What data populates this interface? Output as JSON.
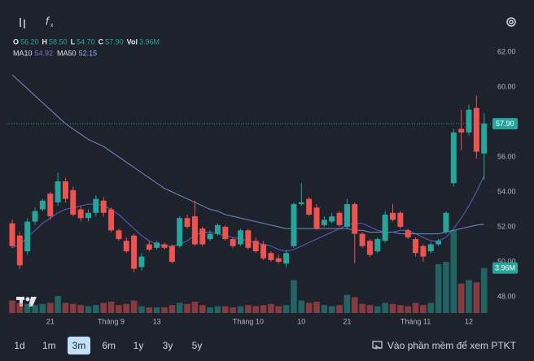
{
  "chart_data": {
    "type": "candlestick",
    "categories": [
      null,
      null,
      null,
      null,
      null,
      "21",
      null,
      null,
      null,
      null,
      null,
      null,
      null,
      "Tháng 9",
      null,
      null,
      null,
      null,
      null,
      "13",
      null,
      null,
      null,
      null,
      null,
      null,
      null,
      null,
      null,
      null,
      null,
      "Tháng 10",
      null,
      null,
      null,
      null,
      null,
      null,
      "10",
      null,
      null,
      null,
      null,
      null,
      "21",
      null,
      null,
      null,
      null,
      null,
      null,
      null,
      null,
      "Tháng 11",
      null,
      null,
      null,
      null,
      null,
      null,
      "12",
      null,
      null
    ],
    "open": [
      52.2,
      51.5,
      50.6,
      52.3,
      53.0,
      53.9,
      53.4,
      54.6,
      54.1,
      53.0,
      52.5,
      52.8,
      53.5,
      53.0,
      51.8,
      51.2,
      51.5,
      49.7,
      51.0,
      50.8,
      51.0,
      50.9,
      50.9,
      52.5,
      52.6,
      51.9,
      51.3,
      51.6,
      52.0,
      51.3,
      51.0,
      51.8,
      51.2,
      51.0,
      50.5,
      50.2,
      49.9,
      50.9,
      53.3,
      53.6,
      53.1,
      52.1,
      52.3,
      52.8,
      52.0,
      53.3,
      51.6,
      51.2,
      50.6,
      51.2,
      52.8,
      52.8,
      51.8,
      51.3,
      50.9,
      50.6,
      51.0,
      51.7,
      54.5,
      57.6,
      57.4,
      58.8,
      56.2
    ],
    "high": [
      52.4,
      51.7,
      52.5,
      53.1,
      53.6,
      54.0,
      55.1,
      54.8,
      54.3,
      53.2,
      53.0,
      53.8,
      53.7,
      53.1,
      51.9,
      51.4,
      51.6,
      50.5,
      51.2,
      51.2,
      51.1,
      51.0,
      52.6,
      52.7,
      53.5,
      52.0,
      51.8,
      52.2,
      52.1,
      51.4,
      51.9,
      51.9,
      51.4,
      51.2,
      50.6,
      50.4,
      50.7,
      53.4,
      54.5,
      53.7,
      53.3,
      52.6,
      52.8,
      52.9,
      53.6,
      53.4,
      51.7,
      51.3,
      51.4,
      52.9,
      53.3,
      52.9,
      51.9,
      51.4,
      51.0,
      51.1,
      51.3,
      52.9,
      57.6,
      58.7,
      59.0,
      59.5,
      58.5
    ],
    "low": [
      50.8,
      49.6,
      50.4,
      52.1,
      52.9,
      52.4,
      53.2,
      53.4,
      52.6,
      52.3,
      52.3,
      52.6,
      52.6,
      51.7,
      51.2,
      50.5,
      49.4,
      49.5,
      50.6,
      50.7,
      50.7,
      49.9,
      50.8,
      51.9,
      50.9,
      50.9,
      51.2,
      51.5,
      51.2,
      50.8,
      50.9,
      50.7,
      50.5,
      50.1,
      50.0,
      49.9,
      49.7,
      50.8,
      53.2,
      52.6,
      51.8,
      52.0,
      52.2,
      52.0,
      51.9,
      49.9,
      50.8,
      50.3,
      50.5,
      51.1,
      52.3,
      51.9,
      51.3,
      50.3,
      50.0,
      50.5,
      50.9,
      51.6,
      54.3,
      56.4,
      57.2,
      55.9,
      54.7
    ],
    "close": [
      50.9,
      49.8,
      52.3,
      52.9,
      53.5,
      52.6,
      54.6,
      53.6,
      52.7,
      52.5,
      52.8,
      53.6,
      52.8,
      51.8,
      51.3,
      50.6,
      49.6,
      50.3,
      50.7,
      51.1,
      50.8,
      50.0,
      52.5,
      52.0,
      51.0,
      51.0,
      51.6,
      52.1,
      51.3,
      50.9,
      51.8,
      50.8,
      50.6,
      50.2,
      50.1,
      50.0,
      50.5,
      53.3,
      53.4,
      52.7,
      51.9,
      52.4,
      52.6,
      52.1,
      53.3,
      51.6,
      50.9,
      50.4,
      51.3,
      52.7,
      52.4,
      52.0,
      51.4,
      50.5,
      50.3,
      51.0,
      51.2,
      52.8,
      57.4,
      57.4,
      58.7,
      56.3,
      57.9
    ],
    "volume": [
      1100000,
      900000,
      800000,
      700000,
      800000,
      900000,
      1500000,
      900000,
      800000,
      700000,
      600000,
      700000,
      900000,
      1000000,
      700000,
      800000,
      1100000,
      600000,
      500000,
      500000,
      500000,
      700000,
      900000,
      800000,
      1000000,
      700000,
      500000,
      600000,
      600000,
      500000,
      600000,
      700000,
      600000,
      700000,
      800000,
      600000,
      700000,
      2900000,
      1100000,
      900000,
      1000000,
      700000,
      600000,
      700000,
      1600000,
      1400000,
      800000,
      700000,
      600000,
      900000,
      800000,
      700000,
      600000,
      900000,
      700000,
      900000,
      4300000,
      4500000,
      7300000,
      2600000,
      2900000,
      2700000,
      3960000
    ],
    "up_color": "#26a69a",
    "down_color": "#ef5350",
    "series": [
      {
        "name": "MA10",
        "color": "#5b5fc7",
        "label_color": "#7f73c4",
        "last_label": "54.92",
        "values": [
          50.8,
          51.0,
          51.4,
          51.8,
          52.2,
          52.5,
          52.8,
          53.0,
          53.1,
          53.2,
          53.3,
          53.3,
          53.2,
          53.0,
          52.7,
          52.3,
          51.9,
          51.5,
          51.2,
          51.0,
          50.9,
          50.9,
          51.0,
          51.2,
          51.5,
          51.7,
          51.7,
          51.6,
          51.5,
          51.4,
          51.3,
          51.2,
          51.1,
          51.0,
          50.9,
          50.7,
          50.6,
          50.7,
          50.9,
          51.1,
          51.3,
          51.5,
          51.7,
          51.9,
          52.1,
          52.2,
          52.2,
          52.0,
          51.8,
          51.7,
          51.7,
          51.8,
          51.8,
          51.6,
          51.4,
          51.2,
          51.2,
          51.4,
          51.9,
          52.5,
          53.2,
          54.0,
          54.92
        ]
      },
      {
        "name": "MA50",
        "color": "#6f8fc0",
        "label_color": "#8fb2e8",
        "last_label": "52.15",
        "values": [
          60.7,
          60.3,
          59.9,
          59.5,
          59.1,
          58.7,
          58.3,
          57.9,
          57.6,
          57.3,
          57.0,
          56.8,
          56.6,
          56.3,
          56.0,
          55.7,
          55.4,
          55.1,
          54.8,
          54.5,
          54.2,
          54.0,
          53.8,
          53.6,
          53.4,
          53.2,
          53.0,
          52.9,
          52.7,
          52.6,
          52.5,
          52.4,
          52.3,
          52.2,
          52.1,
          52.0,
          51.9,
          51.9,
          51.9,
          51.9,
          51.9,
          51.9,
          51.9,
          51.9,
          51.9,
          51.8,
          51.8,
          51.7,
          51.7,
          51.7,
          51.7,
          51.6,
          51.6,
          51.6,
          51.6,
          51.6,
          51.6,
          51.7,
          51.8,
          51.9,
          52.0,
          52.1,
          52.15
        ]
      }
    ],
    "legend": [
      {
        "label": "O",
        "value": "56.20"
      },
      {
        "label": "H",
        "value": "58.50"
      },
      {
        "label": "L",
        "value": "54.70"
      },
      {
        "label": "C",
        "value": "57.90"
      },
      {
        "label": "Vol",
        "value": "3.96M"
      }
    ],
    "ylim": [
      47,
      63
    ],
    "yticks": [
      {
        "value": 62,
        "label": "62.00"
      },
      {
        "value": 60,
        "label": "60.00"
      },
      {
        "value": 58,
        "label": "58.00"
      },
      {
        "value": 56,
        "label": "56.00"
      },
      {
        "value": 54,
        "label": "54.00"
      },
      {
        "value": 52,
        "label": "52.00"
      },
      {
        "value": 50,
        "label": "50.00"
      },
      {
        "value": 48,
        "label": "48.00"
      }
    ]
  },
  "toolbar": {
    "timeframes": [
      "1d",
      "1m",
      "3m",
      "6m",
      "1y",
      "3y",
      "5y"
    ],
    "active": "3m",
    "link": "Vào phần mềm để xem PTKT"
  }
}
